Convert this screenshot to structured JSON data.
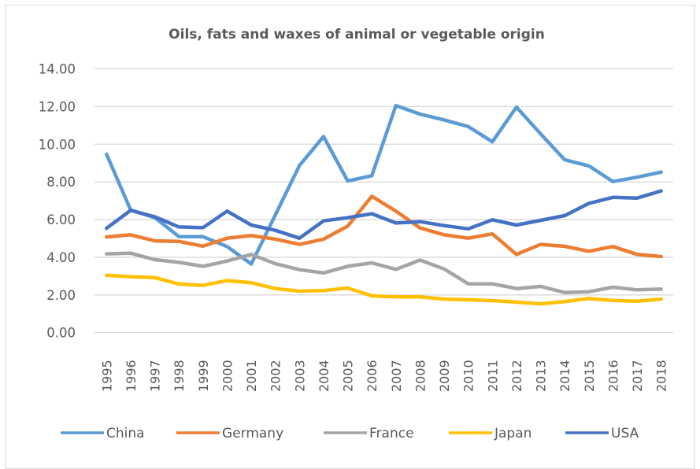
{
  "chart_data": {
    "type": "line",
    "title": "Oils, fats and waxes of animal or vegetable origin",
    "xlabel": "",
    "ylabel": "",
    "ylim": [
      0,
      14
    ],
    "yticks": [
      "0.00",
      "2.00",
      "4.00",
      "6.00",
      "8.00",
      "10.00",
      "12.00",
      "14.00"
    ],
    "ytick_values": [
      0,
      2,
      4,
      6,
      8,
      10,
      12,
      14
    ],
    "grid": true,
    "legend_position": "bottom",
    "categories": [
      "1995",
      "1996",
      "1997",
      "1998",
      "1999",
      "2000",
      "2001",
      "2002",
      "2003",
      "2004",
      "2005",
      "2006",
      "2007",
      "2008",
      "2009",
      "2010",
      "2011",
      "2012",
      "2013",
      "2014",
      "2015",
      "2016",
      "2017",
      "2018"
    ],
    "series": [
      {
        "name": "China",
        "color": "#5B9BD5",
        "values": [
          9.47,
          6.51,
          6.1,
          5.1,
          5.09,
          4.57,
          3.64,
          6.25,
          8.87,
          10.41,
          8.05,
          8.33,
          12.05,
          11.6,
          11.29,
          10.94,
          10.13,
          11.97,
          10.55,
          9.17,
          8.85,
          8.02,
          8.25,
          8.52
        ]
      },
      {
        "name": "Germany",
        "color": "#ED7D31",
        "values": [
          5.08,
          5.19,
          4.87,
          4.84,
          4.59,
          5.01,
          5.15,
          4.96,
          4.68,
          4.96,
          5.65,
          7.24,
          6.45,
          5.56,
          5.19,
          5.01,
          5.24,
          4.15,
          4.68,
          4.58,
          4.32,
          4.57,
          4.15,
          4.04
        ]
      },
      {
        "name": "France",
        "color": "#A5A5A5",
        "values": [
          4.18,
          4.22,
          3.87,
          3.73,
          3.52,
          3.8,
          4.15,
          3.66,
          3.34,
          3.17,
          3.52,
          3.7,
          3.36,
          3.85,
          3.38,
          2.59,
          2.59,
          2.34,
          2.45,
          2.13,
          2.17,
          2.41,
          2.27,
          2.31
        ]
      },
      {
        "name": "Japan",
        "color": "#FFC000",
        "values": [
          3.04,
          2.97,
          2.92,
          2.58,
          2.51,
          2.76,
          2.65,
          2.34,
          2.2,
          2.23,
          2.37,
          1.95,
          1.9,
          1.9,
          1.78,
          1.74,
          1.7,
          1.62,
          1.53,
          1.65,
          1.81,
          1.71,
          1.67,
          1.78
        ]
      },
      {
        "name": "USA",
        "color": "#4472C4",
        "values": [
          5.54,
          6.49,
          6.15,
          5.61,
          5.57,
          6.45,
          5.71,
          5.43,
          5.01,
          5.93,
          6.1,
          6.31,
          5.82,
          5.89,
          5.68,
          5.51,
          5.99,
          5.71,
          5.96,
          6.21,
          6.86,
          7.18,
          7.14,
          7.52
        ]
      }
    ]
  }
}
